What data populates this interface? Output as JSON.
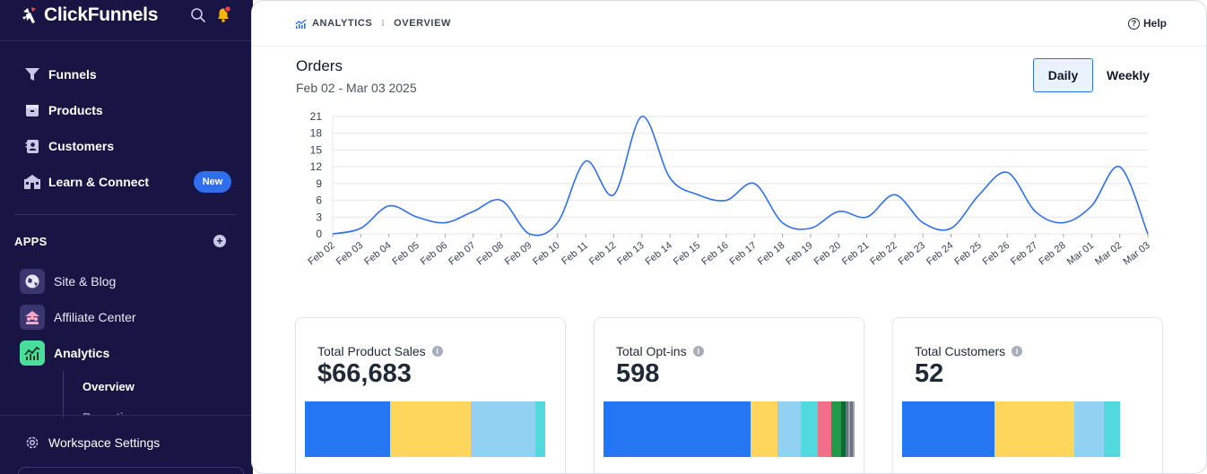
{
  "app": {
    "name": "ClickFunnels"
  },
  "sidebar": {
    "nav": [
      {
        "label": "Funnels",
        "icon": "funnel-icon"
      },
      {
        "label": "Products",
        "icon": "product-box-icon"
      },
      {
        "label": "Customers",
        "icon": "contact-card-icon"
      },
      {
        "label": "Learn & Connect",
        "icon": "school-icon"
      }
    ],
    "new_badge": "New",
    "apps_title": "APPS",
    "apps": [
      {
        "label": "Site & Blog",
        "icon": "globe-icon"
      },
      {
        "label": "Affiliate Center",
        "icon": "affiliate-icon"
      },
      {
        "label": "Analytics",
        "icon": "analytics-icon"
      }
    ],
    "analytics_sub": [
      {
        "label": "Overview"
      },
      {
        "label": "Reporting"
      }
    ],
    "workspace_settings": "Workspace Settings"
  },
  "header": {
    "breadcrumb": [
      "ANALYTICS",
      "OVERVIEW"
    ],
    "help": "Help"
  },
  "orders": {
    "title": "Orders",
    "range": "Feb 02 - Mar 03 2025",
    "toggle": {
      "daily": "Daily",
      "weekly": "Weekly",
      "selected": "daily"
    }
  },
  "chart_data": {
    "type": "line",
    "title": "Orders",
    "xlabel": "",
    "ylabel": "",
    "ylim": [
      0,
      21
    ],
    "yticks": [
      0,
      3,
      6,
      9,
      12,
      15,
      18,
      21
    ],
    "grid": true,
    "categories": [
      "Feb 02",
      "Feb 03",
      "Feb 04",
      "Feb 05",
      "Feb 06",
      "Feb 07",
      "Feb 08",
      "Feb 09",
      "Feb 10",
      "Feb 11",
      "Feb 12",
      "Feb 13",
      "Feb 14",
      "Feb 15",
      "Feb 16",
      "Feb 17",
      "Feb 18",
      "Feb 19",
      "Feb 20",
      "Feb 21",
      "Feb 22",
      "Feb 23",
      "Feb 24",
      "Feb 25",
      "Feb 26",
      "Feb 27",
      "Feb 28",
      "Mar 01",
      "Mar 02",
      "Mar 03"
    ],
    "series": [
      {
        "values": [
          0,
          1,
          5,
          3,
          2,
          4,
          6,
          0,
          2,
          13,
          7,
          21,
          10,
          7,
          6,
          9,
          2,
          1,
          4,
          3,
          7,
          2,
          1,
          7,
          11,
          4,
          2,
          5,
          12,
          0
        ],
        "color": "#2f6fed"
      }
    ]
  },
  "cards": [
    {
      "title": "Total Product Sales",
      "value": "$66,683",
      "segments": [
        {
          "share": 0.355,
          "color": "#2476f2"
        },
        {
          "share": 0.335,
          "color": "#fdd65b"
        },
        {
          "share": 0.27,
          "color": "#92d1f2"
        },
        {
          "share": 0.04,
          "color": "#52d9de"
        }
      ]
    },
    {
      "title": "Total Opt-ins",
      "value": "598",
      "segments": [
        {
          "share": 0.587,
          "color": "#2476f2"
        },
        {
          "share": 0.107,
          "color": "#fdd65b"
        },
        {
          "share": 0.093,
          "color": "#92d1f2"
        },
        {
          "share": 0.068,
          "color": "#52d9de"
        },
        {
          "share": 0.054,
          "color": "#f0708a"
        },
        {
          "share": 0.036,
          "color": "#1e9a48"
        },
        {
          "share": 0.018,
          "color": "#0b6a2f"
        },
        {
          "share": 0.011,
          "color": "#6b7280"
        },
        {
          "share": 0.009,
          "color": "#9ca3af"
        },
        {
          "share": 0.009,
          "color": "#6b7280"
        },
        {
          "share": 0.008,
          "color": "#9ca3af"
        }
      ]
    },
    {
      "title": "Total Customers",
      "value": "52",
      "segments": [
        {
          "share": 0.425,
          "color": "#2476f2"
        },
        {
          "share": 0.367,
          "color": "#fdd65b"
        },
        {
          "share": 0.136,
          "color": "#92d1f2"
        },
        {
          "share": 0.072,
          "color": "#52d9de"
        }
      ]
    }
  ],
  "colors": {
    "sidebar_bg": "#181544",
    "accent": "#2f6fed"
  }
}
